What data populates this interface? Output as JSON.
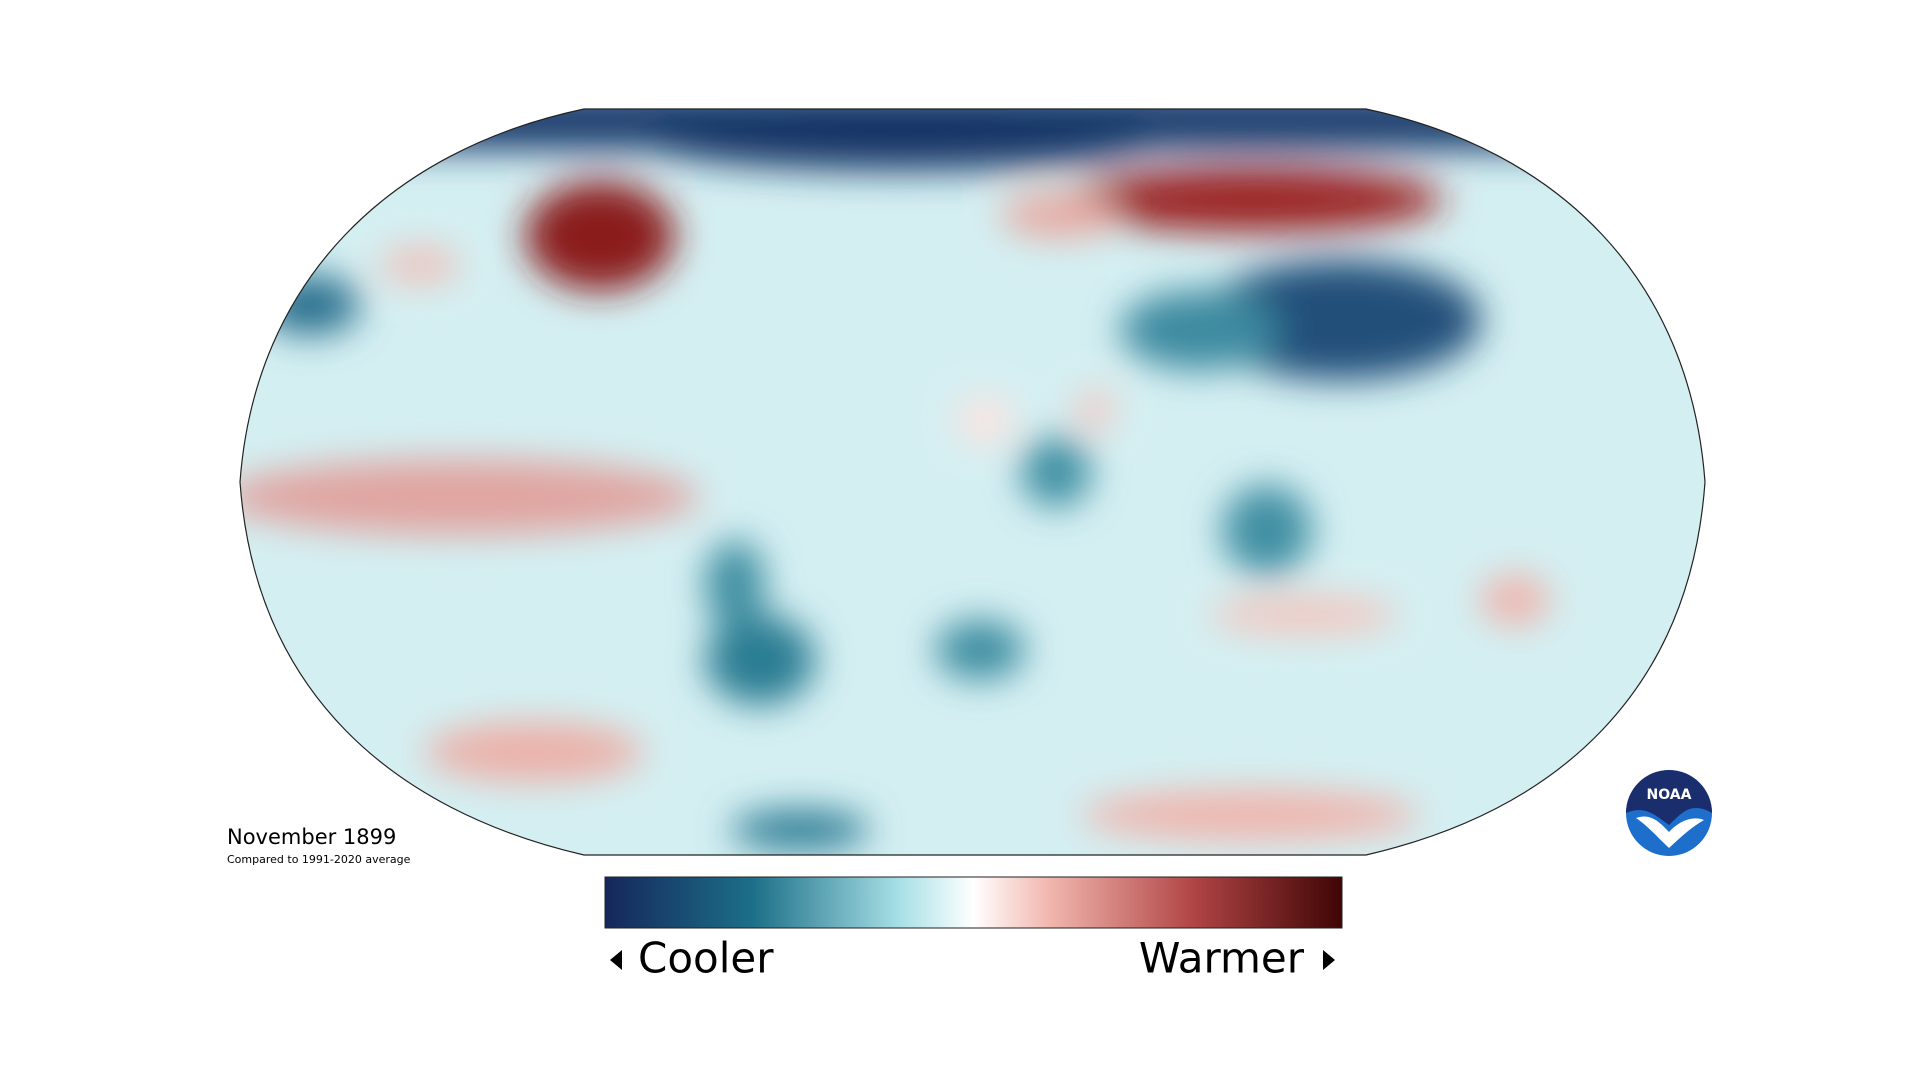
{
  "map": {
    "title": "November 1899",
    "subtitle": "Compared to 1991-2020 average"
  },
  "legend": {
    "low_label": "Cooler",
    "high_label": "Warmer"
  },
  "logo": {
    "text": "NOAA"
  }
}
